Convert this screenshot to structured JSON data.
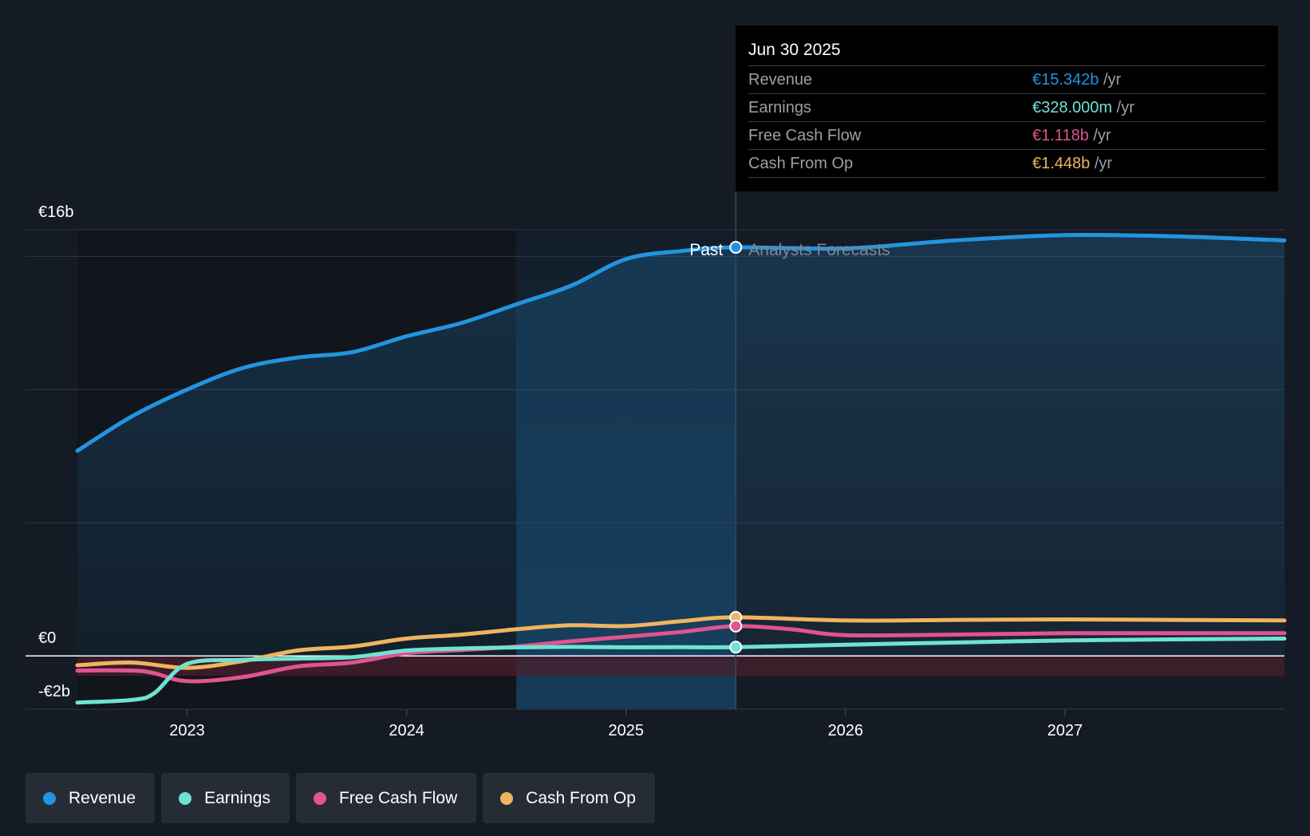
{
  "chart_data": {
    "type": "line",
    "x_unit": "year",
    "xlim": [
      2022.5,
      2028.0
    ],
    "ylim": [
      -2,
      16
    ],
    "split_x": 2025.5,
    "past_shade_from": 2024.5,
    "y_tick_labels": [
      {
        "value": 16,
        "label": "€16b"
      },
      {
        "value": 0,
        "label": "€0"
      },
      {
        "value": -2,
        "label": "-€2b"
      }
    ],
    "gridlines": [
      16,
      15,
      10,
      5,
      0,
      -2
    ],
    "x_ticks": [
      {
        "value": 2023,
        "label": "2023"
      },
      {
        "value": 2024,
        "label": "2024"
      },
      {
        "value": 2025,
        "label": "2025"
      },
      {
        "value": 2026,
        "label": "2026"
      },
      {
        "value": 2027,
        "label": "2027"
      }
    ],
    "past_label": "Past",
    "forecast_label": "Analysts Forecasts",
    "series": [
      {
        "name": "Revenue",
        "color": "#2394df",
        "fill": true,
        "x": [
          2022.5,
          2022.75,
          2023.0,
          2023.25,
          2023.5,
          2023.75,
          2024.0,
          2024.25,
          2024.5,
          2024.75,
          2025.0,
          2025.25,
          2025.5,
          2026.0,
          2026.5,
          2027.0,
          2027.5,
          2028.0
        ],
        "y": [
          7.7,
          9.0,
          10.0,
          10.8,
          11.2,
          11.4,
          12.0,
          12.5,
          13.2,
          13.9,
          14.9,
          15.2,
          15.34,
          15.3,
          15.6,
          15.8,
          15.75,
          15.6
        ]
      },
      {
        "name": "Earnings",
        "color": "#6fe2d3",
        "fill": false,
        "x": [
          2022.5,
          2022.75,
          2022.85,
          2023.0,
          2023.25,
          2023.5,
          2023.75,
          2024.0,
          2024.25,
          2024.5,
          2024.75,
          2025.0,
          2025.25,
          2025.5,
          2026.0,
          2026.5,
          2027.0,
          2027.5,
          2028.0
        ],
        "y": [
          -1.75,
          -1.65,
          -1.4,
          -0.3,
          -0.15,
          -0.1,
          -0.05,
          0.2,
          0.28,
          0.32,
          0.34,
          0.32,
          0.33,
          0.328,
          0.42,
          0.5,
          0.58,
          0.62,
          0.65
        ]
      },
      {
        "name": "Free Cash Flow",
        "color": "#e0548f",
        "fill": false,
        "x": [
          2022.5,
          2022.75,
          2022.85,
          2023.0,
          2023.25,
          2023.5,
          2023.75,
          2024.0,
          2024.25,
          2024.5,
          2024.75,
          2025.0,
          2025.25,
          2025.5,
          2025.75,
          2026.0,
          2026.5,
          2027.0,
          2027.5,
          2028.0
        ],
        "y": [
          -0.55,
          -0.55,
          -0.65,
          -0.95,
          -0.8,
          -0.4,
          -0.25,
          0.1,
          0.22,
          0.35,
          0.55,
          0.72,
          0.9,
          1.118,
          1.0,
          0.78,
          0.8,
          0.85,
          0.85,
          0.85
        ]
      },
      {
        "name": "Cash From Op",
        "color": "#f0b45f",
        "fill": false,
        "x": [
          2022.5,
          2022.75,
          2023.0,
          2023.25,
          2023.5,
          2023.75,
          2024.0,
          2024.25,
          2024.5,
          2024.75,
          2025.0,
          2025.25,
          2025.5,
          2026.0,
          2026.5,
          2027.0,
          2027.5,
          2028.0
        ],
        "y": [
          -0.35,
          -0.25,
          -0.45,
          -0.2,
          0.2,
          0.35,
          0.65,
          0.8,
          1.0,
          1.15,
          1.12,
          1.3,
          1.448,
          1.33,
          1.35,
          1.37,
          1.35,
          1.33
        ]
      }
    ]
  },
  "tooltip": {
    "date": "Jun 30 2025",
    "unit": "/yr",
    "rows": [
      {
        "label": "Revenue",
        "value": "€15.342b",
        "color": "#2394df"
      },
      {
        "label": "Earnings",
        "value": "€328.000m",
        "color": "#6fe2d3"
      },
      {
        "label": "Free Cash Flow",
        "value": "€1.118b",
        "color": "#e0548f"
      },
      {
        "label": "Cash From Op",
        "value": "€1.448b",
        "color": "#f0b45f"
      }
    ]
  },
  "legend": [
    {
      "label": "Revenue",
      "color": "#2394df"
    },
    {
      "label": "Earnings",
      "color": "#6fe2d3"
    },
    {
      "label": "Free Cash Flow",
      "color": "#e0548f"
    },
    {
      "label": "Cash From Op",
      "color": "#f0b45f"
    }
  ]
}
